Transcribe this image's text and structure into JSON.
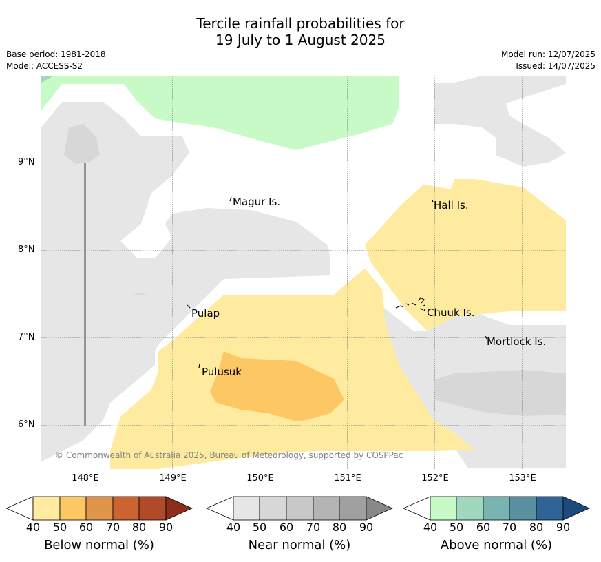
{
  "title_line1": "Tercile rainfall probabilities for",
  "title_line2": "19 July to 1 August 2025",
  "base_period": "Base period: 1981-2018",
  "model": "Model: ACCESS-S2",
  "model_run": "Model run: 12/07/2025",
  "issued": "Issued: 14/07/2025",
  "copyright": "© Commonwealth of Australia 2025, Bureau of Meteorology, supported by COSPPac",
  "y_ticks": [
    "9°N",
    "8°N",
    "7°N",
    "6°N"
  ],
  "x_ticks": [
    "148°E",
    "149°E",
    "150°E",
    "151°E",
    "152°E",
    "153°E"
  ],
  "places": {
    "magur": "Magur Is.",
    "hall": "Hall Is.",
    "pulap": "Pulap",
    "chuuk": "Chuuk Is.",
    "mortlock": "Mortlock Is.",
    "pulusuk": "Pulusuk"
  },
  "colorbars": [
    {
      "label": "Below normal (%)",
      "ticks": [
        "40",
        "50",
        "60",
        "70",
        "80",
        "90"
      ],
      "colors": [
        "#ffeba0",
        "#fdc864",
        "#e0964a",
        "#cc6430",
        "#b04a28",
        "#8c2e1e"
      ]
    },
    {
      "label": "Near normal (%)",
      "ticks": [
        "40",
        "50",
        "60",
        "70",
        "80",
        "90"
      ],
      "colors": [
        "#e6e6e6",
        "#d7d7d7",
        "#c8c8c8",
        "#b4b4b4",
        "#a0a0a0",
        "#888888"
      ]
    },
    {
      "label": "Above normal (%)",
      "ticks": [
        "40",
        "50",
        "60",
        "70",
        "80",
        "90"
      ],
      "colors": [
        "#c8fac8",
        "#a0d8be",
        "#7ab4b0",
        "#5a90a0",
        "#306496",
        "#1c4a7e"
      ]
    }
  ],
  "colors": {
    "below_50": "#ffeba0",
    "below_60": "#fdc864",
    "near_50": "#e6e6e6",
    "near_60": "#d7d7d7",
    "above_50": "#c8fac8",
    "above_60": "#a0d8be"
  }
}
